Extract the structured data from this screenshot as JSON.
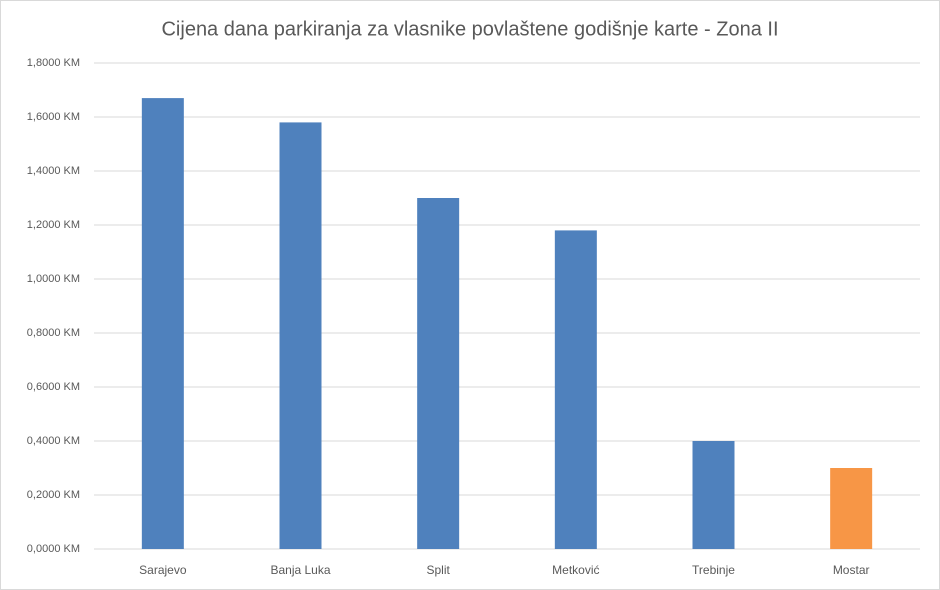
{
  "chart_data": {
    "type": "bar",
    "title": "Cijena dana parkiranja za vlasnike povlaštene godišnje karte - Zona II",
    "categories": [
      "Sarajevo",
      "Banja Luka",
      "Split",
      "Metković",
      "Trebinje",
      "Mostar"
    ],
    "values": [
      1.67,
      1.58,
      1.3,
      1.18,
      0.4,
      0.3
    ],
    "colors": [
      "#4f81bd",
      "#4f81bd",
      "#4f81bd",
      "#4f81bd",
      "#4f81bd",
      "#f79646"
    ],
    "ylim": [
      0,
      1.8
    ],
    "yticks": [
      {
        "value": 0,
        "label": "0,0000 KM"
      },
      {
        "value": 0.2,
        "label": "0,2000 KM"
      },
      {
        "value": 0.4,
        "label": "0,4000 KM"
      },
      {
        "value": 0.6,
        "label": "0,6000 KM"
      },
      {
        "value": 0.8,
        "label": "0,8000 KM"
      },
      {
        "value": 1.0,
        "label": "1,0000 KM"
      },
      {
        "value": 1.2,
        "label": "1,2000 KM"
      },
      {
        "value": 1.4,
        "label": "1,4000 KM"
      },
      {
        "value": 1.6,
        "label": "1,6000 KM"
      },
      {
        "value": 1.8,
        "label": "1,8000 KM"
      }
    ],
    "grid": true
  }
}
